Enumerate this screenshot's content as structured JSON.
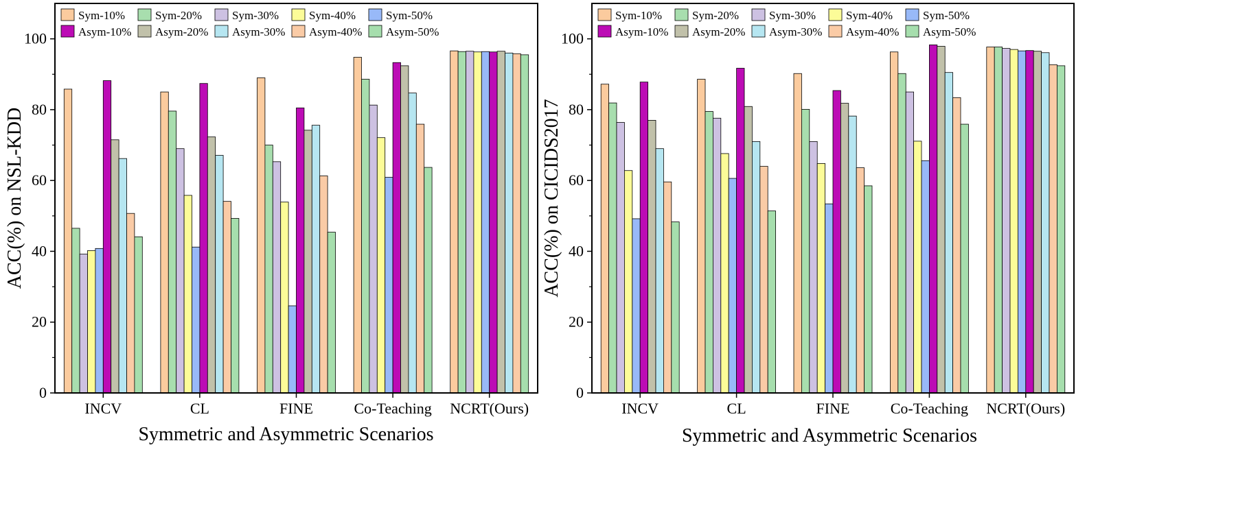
{
  "series_colors": [
    "#FBCB9E",
    "#A8DEAE",
    "#CDC1E2",
    "#FCFC98",
    "#98B9F8",
    "#BC0CB5",
    "#C1C1AA",
    "#B6E6F1",
    "#FACBA6",
    "#A6DEAD"
  ],
  "chart_data": [
    {
      "type": "bar",
      "xlabel": "Symmetric and Asymmetric Scenarios",
      "ylabel": "ACC(%) on NSL-KDD",
      "ylim": [
        0,
        110
      ],
      "yticks": [
        "0",
        "20",
        "40",
        "60",
        "80",
        "100"
      ],
      "legend_position": "top",
      "categories": [
        "INCV",
        "CL",
        "FINE",
        "Co-Teaching",
        "NCRT(Ours)"
      ],
      "series": [
        {
          "name": "Sym-10%",
          "values": [
            85.8,
            85.0,
            89.0,
            94.8,
            96.6
          ]
        },
        {
          "name": "Sym-20%",
          "values": [
            46.5,
            79.6,
            70.0,
            88.6,
            96.4
          ]
        },
        {
          "name": "Sym-30%",
          "values": [
            39.2,
            69.0,
            65.3,
            81.3,
            96.5
          ]
        },
        {
          "name": "Sym-40%",
          "values": [
            40.2,
            55.8,
            53.9,
            72.1,
            96.3
          ]
        },
        {
          "name": "Sym-50%",
          "values": [
            40.8,
            41.2,
            24.6,
            60.9,
            96.4
          ]
        },
        {
          "name": "Asym-10%",
          "values": [
            88.2,
            87.4,
            80.5,
            93.3,
            96.3
          ]
        },
        {
          "name": "Asym-20%",
          "values": [
            71.5,
            72.3,
            74.2,
            92.4,
            96.5
          ]
        },
        {
          "name": "Asym-30%",
          "values": [
            66.2,
            67.1,
            75.6,
            84.7,
            96.0
          ]
        },
        {
          "name": "Asym-40%",
          "values": [
            50.7,
            54.1,
            61.3,
            75.9,
            95.8
          ]
        },
        {
          "name": "Asym-50%",
          "values": [
            44.1,
            49.3,
            45.4,
            63.7,
            95.5
          ]
        }
      ]
    },
    {
      "type": "bar",
      "xlabel": "Symmetric and Asymmetric Scenarios",
      "ylabel": "ACC(%) on CICIDS2017",
      "ylim": [
        0,
        110
      ],
      "yticks": [
        "0",
        "20",
        "40",
        "60",
        "80",
        "100"
      ],
      "legend_position": "top",
      "categories": [
        "INCV",
        "CL",
        "FINE",
        "Co-Teaching",
        "NCRT(Ours)"
      ],
      "series": [
        {
          "name": "Sym-10%",
          "values": [
            87.2,
            88.6,
            90.2,
            96.3,
            97.7
          ]
        },
        {
          "name": "Sym-20%",
          "values": [
            81.9,
            79.5,
            80.1,
            90.2,
            97.7
          ]
        },
        {
          "name": "Sym-30%",
          "values": [
            76.4,
            77.6,
            71.0,
            85.0,
            97.3
          ]
        },
        {
          "name": "Sym-40%",
          "values": [
            62.8,
            67.6,
            64.8,
            71.1,
            97.0
          ]
        },
        {
          "name": "Sym-50%",
          "values": [
            49.2,
            60.6,
            53.4,
            65.6,
            96.6
          ]
        },
        {
          "name": "Asym-10%",
          "values": [
            87.8,
            91.7,
            85.4,
            98.3,
            96.7
          ]
        },
        {
          "name": "Asym-20%",
          "values": [
            77.0,
            80.9,
            81.8,
            97.9,
            96.5
          ]
        },
        {
          "name": "Asym-30%",
          "values": [
            69.0,
            71.0,
            78.2,
            90.5,
            96.1
          ]
        },
        {
          "name": "Asym-40%",
          "values": [
            59.6,
            64.0,
            63.6,
            83.4,
            92.7
          ]
        },
        {
          "name": "Asym-50%",
          "values": [
            48.3,
            51.4,
            58.5,
            75.9,
            92.4
          ]
        }
      ]
    }
  ]
}
